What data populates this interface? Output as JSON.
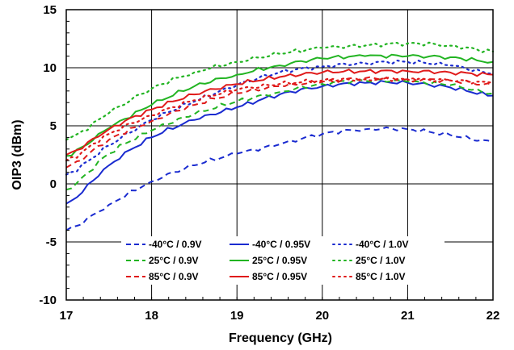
{
  "chart_data": {
    "type": "line",
    "xlabel": "Frequency (GHz)",
    "ylabel": "OIP3 (dBm)",
    "xlim": [
      17,
      22
    ],
    "ylim": [
      -10,
      15
    ],
    "xticks": [
      17,
      18,
      19,
      20,
      21,
      22
    ],
    "yticks": [
      -10,
      -5,
      0,
      5,
      10,
      15
    ],
    "xtick_labels": [
      "17",
      "18",
      "19",
      "20",
      "21",
      "22"
    ],
    "ytick_labels": [
      "-10",
      "-5",
      "0",
      "5",
      "10",
      "15"
    ],
    "grid": true,
    "legend": {
      "placement": "lower-center",
      "columns": 3,
      "rows": 3
    },
    "colors": {
      "blue": "#1a2bd0",
      "green": "#22b422",
      "red": "#e01a1a"
    },
    "x": [
      17.0,
      17.5,
      18.0,
      18.5,
      19.0,
      19.5,
      20.0,
      20.5,
      21.0,
      21.5,
      22.0
    ],
    "series": [
      {
        "name": "-40°C / 0.9V",
        "color": "blue",
        "dash": "dash",
        "values": [
          -4.0,
          -1.8,
          0.2,
          1.6,
          2.6,
          3.4,
          4.3,
          4.7,
          4.7,
          4.2,
          3.6
        ]
      },
      {
        "name": "-40°C / 0.95V",
        "color": "blue",
        "dash": "solid",
        "values": [
          -1.7,
          1.6,
          4.0,
          5.5,
          6.6,
          7.7,
          8.4,
          8.7,
          8.7,
          8.3,
          7.6
        ]
      },
      {
        "name": "-40°C / 1.0V",
        "color": "blue",
        "dash": "dot",
        "values": [
          0.8,
          3.3,
          5.5,
          7.1,
          8.5,
          9.6,
          10.1,
          10.4,
          10.5,
          10.2,
          9.5
        ]
      },
      {
        "name": "25°C / 0.9V",
        "color": "green",
        "dash": "dash",
        "values": [
          -0.5,
          2.6,
          4.6,
          6.0,
          7.1,
          7.9,
          8.6,
          8.9,
          8.8,
          8.5,
          7.8
        ]
      },
      {
        "name": "25°C / 0.95V",
        "color": "green",
        "dash": "solid",
        "values": [
          2.4,
          4.8,
          6.8,
          8.4,
          9.4,
          10.2,
          10.8,
          11.0,
          11.0,
          10.9,
          10.5
        ]
      },
      {
        "name": "25°C / 1.0V",
        "color": "green",
        "dash": "dot",
        "values": [
          3.8,
          6.1,
          8.2,
          9.6,
          10.5,
          11.2,
          11.7,
          11.9,
          12.1,
          11.9,
          11.4
        ]
      },
      {
        "name": "85°C / 0.9V",
        "color": "red",
        "dash": "dash",
        "values": [
          1.4,
          3.8,
          5.4,
          6.8,
          7.8,
          8.4,
          8.8,
          9.1,
          9.0,
          8.9,
          8.5
        ]
      },
      {
        "name": "85°C / 0.95V",
        "color": "red",
        "dash": "solid",
        "values": [
          2.5,
          4.7,
          6.4,
          7.7,
          8.6,
          9.2,
          9.6,
          9.7,
          9.7,
          9.6,
          9.4
        ]
      },
      {
        "name": "85°C / 1.0V",
        "color": "red",
        "dash": "dot",
        "values": [
          2.0,
          4.3,
          5.9,
          7.2,
          8.1,
          8.6,
          8.9,
          9.0,
          9.0,
          8.9,
          8.7
        ]
      }
    ]
  }
}
